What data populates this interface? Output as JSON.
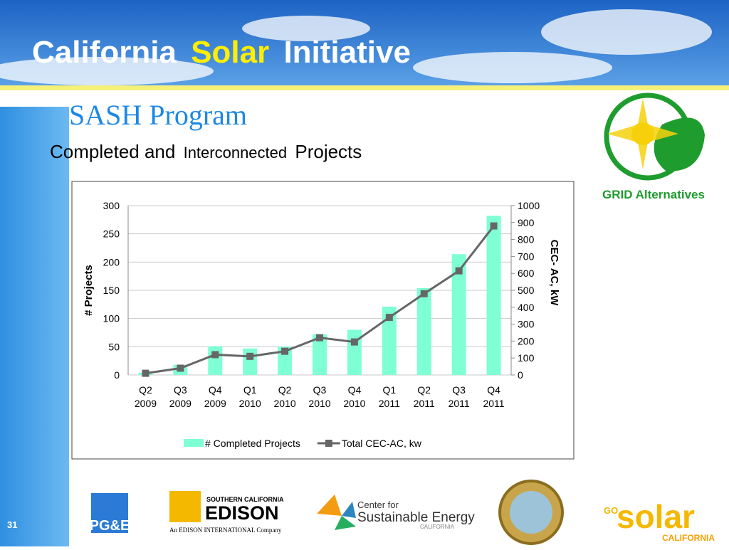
{
  "header": {
    "title_parts": [
      "California",
      "Solar",
      "Initiative"
    ]
  },
  "subtitle": "SASH Program",
  "heading_parts": [
    "Completed and",
    "Interconnected",
    "Projects"
  ],
  "page_number": "31",
  "logos": {
    "grid": "GRID Alternatives",
    "pge": "PG&E",
    "edison_top": "SOUTHERN CALIFORNIA",
    "edison": "EDISON",
    "edison_sub": "An EDISON INTERNATIONAL Company",
    "cse_top": "Center for",
    "cse": "Sustainable Energy",
    "cse_sub": "CALIFORNIA",
    "go": "GO",
    "solar": "solar",
    "solar_sub": "CALIFORNIA"
  },
  "chart_data": {
    "type": "combo",
    "categories": [
      "Q2 2009",
      "Q3 2009",
      "Q4 2009",
      "Q1 2010",
      "Q2 2010",
      "Q3 2010",
      "Q4 2010",
      "Q1 2011",
      "Q2 2011",
      "Q3 2011",
      "Q4 2011"
    ],
    "series": [
      {
        "name": "# Completed Projects",
        "type": "bar",
        "color": "#7fffd4",
        "values": [
          4,
          18,
          51,
          47,
          50,
          72,
          80,
          121,
          154,
          214,
          282
        ]
      },
      {
        "name": "Total CEC-AC, kw",
        "type": "line",
        "axis": "y2",
        "color": "#666666",
        "values": [
          10,
          40,
          120,
          110,
          140,
          220,
          195,
          340,
          480,
          615,
          880
        ]
      }
    ],
    "ylabel": "# Projects",
    "y2label": "CEC- AC, kW",
    "ylim": [
      0,
      300
    ],
    "yticks": [
      0,
      50,
      100,
      150,
      200,
      250,
      300
    ],
    "y2lim": [
      0,
      1000
    ],
    "y2ticks": [
      0,
      100,
      200,
      300,
      400,
      500,
      600,
      700,
      800,
      900,
      1000
    ],
    "grid": true,
    "legend": "bottom"
  }
}
